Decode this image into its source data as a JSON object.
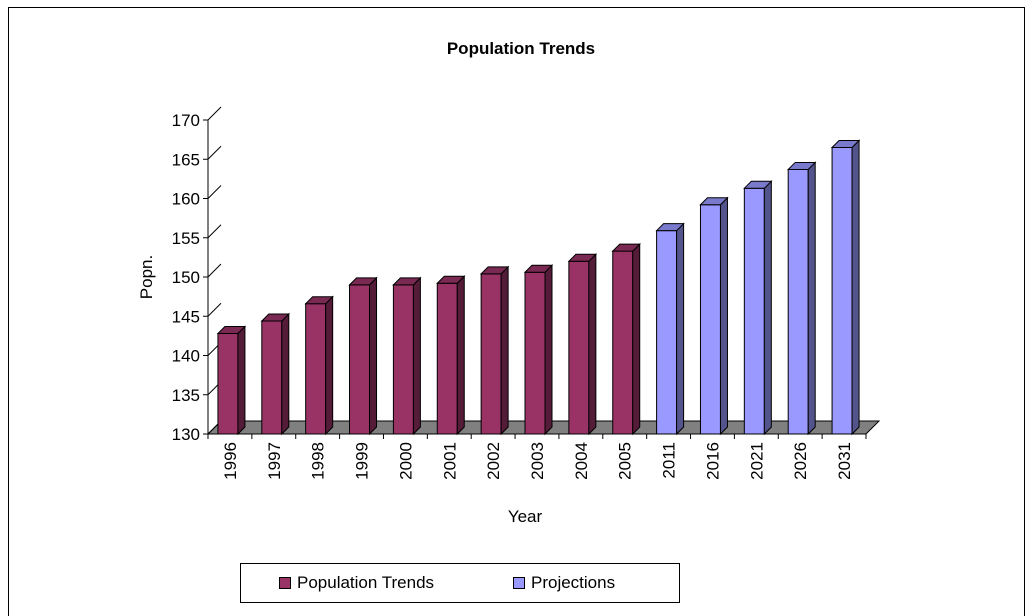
{
  "chart_data": {
    "type": "bar",
    "title": "Population Trends",
    "xlabel": "Year",
    "ylabel": "Popn.",
    "ylim": [
      130,
      170
    ],
    "yticks": [
      130,
      135,
      140,
      145,
      150,
      155,
      160,
      165,
      170
    ],
    "categories": [
      "1996",
      "1997",
      "1998",
      "1999",
      "2000",
      "2001",
      "2002",
      "2003",
      "2004",
      "2005",
      "2011",
      "2016",
      "2021",
      "2026",
      "2031"
    ],
    "series": [
      {
        "name": "Population Trends",
        "color": "#993366",
        "values": [
          142.8,
          144.4,
          146.6,
          149.0,
          149.0,
          149.2,
          150.4,
          150.6,
          152.0,
          153.3,
          null,
          null,
          null,
          null,
          null
        ]
      },
      {
        "name": "Projections",
        "color": "#9999FF",
        "values": [
          null,
          null,
          null,
          null,
          null,
          null,
          null,
          null,
          null,
          null,
          155.9,
          159.2,
          161.3,
          163.7,
          166.5
        ]
      }
    ],
    "legend_position": "bottom",
    "grid": false
  }
}
